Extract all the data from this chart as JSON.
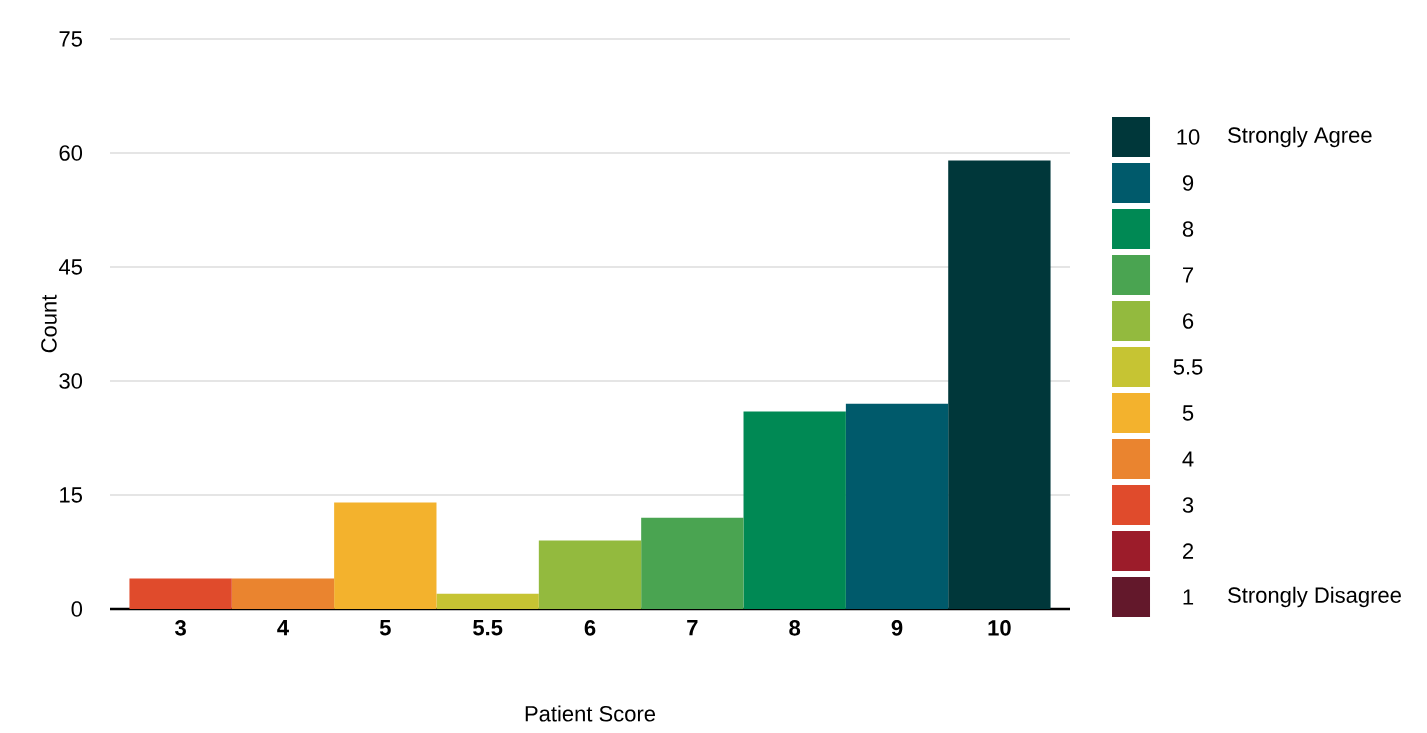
{
  "chart_data": {
    "type": "bar",
    "xlabel": "Patient Score",
    "ylabel": "Count",
    "categories": [
      "3",
      "4",
      "5",
      "5.5",
      "6",
      "7",
      "8",
      "9",
      "10"
    ],
    "series": [
      {
        "name": "10",
        "color": "#00373a",
        "values": [
          null,
          null,
          null,
          null,
          null,
          null,
          null,
          null,
          59
        ]
      },
      {
        "name": "9",
        "color": "#005a6b",
        "values": [
          null,
          null,
          null,
          null,
          null,
          null,
          null,
          27,
          null
        ]
      },
      {
        "name": "8",
        "color": "#008954",
        "values": [
          null,
          null,
          null,
          null,
          null,
          null,
          26,
          null,
          null
        ]
      },
      {
        "name": "7",
        "color": "#4aa451",
        "values": [
          null,
          null,
          null,
          null,
          null,
          12,
          null,
          null,
          null
        ]
      },
      {
        "name": "6",
        "color": "#93ba3e",
        "values": [
          null,
          null,
          null,
          null,
          9,
          null,
          null,
          null,
          null
        ]
      },
      {
        "name": "5.5",
        "color": "#c6c433",
        "values": [
          null,
          null,
          null,
          2,
          null,
          null,
          null,
          null,
          null
        ]
      },
      {
        "name": "5",
        "color": "#f3b22d",
        "values": [
          null,
          null,
          14,
          null,
          null,
          null,
          null,
          null,
          null
        ]
      },
      {
        "name": "4",
        "color": "#ea842f",
        "values": [
          null,
          4,
          null,
          null,
          null,
          null,
          null,
          null,
          null
        ]
      },
      {
        "name": "3",
        "color": "#e04b2c",
        "values": [
          4,
          null,
          null,
          null,
          null,
          null,
          null,
          null,
          null
        ]
      },
      {
        "name": "2",
        "color": "#9c1c2a",
        "values": [
          null,
          null,
          null,
          null,
          null,
          null,
          null,
          null,
          null
        ]
      },
      {
        "name": "1",
        "color": "#63182b",
        "values": [
          null,
          null,
          null,
          null,
          null,
          null,
          null,
          null,
          null
        ]
      }
    ],
    "ylim": [
      0,
      75
    ],
    "yticks": [
      0,
      15,
      30,
      45,
      60,
      75
    ],
    "grid": "y",
    "legend": "right",
    "annotations": [
      "Strongly Agree",
      "Strongly Disagree"
    ]
  }
}
